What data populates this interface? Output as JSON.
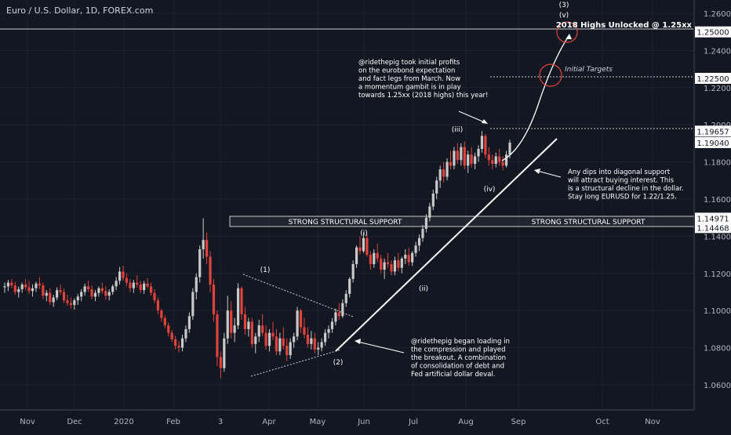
{
  "chart_data": {
    "type": "candlestick",
    "title": "Euro / U.S. Dollar, 1D, FOREX.com",
    "x_labels": [
      "Nov",
      "Dec",
      "2020",
      "Feb",
      "3",
      "Apr",
      "May",
      "Jun",
      "Jul",
      "Aug",
      "Sep",
      "Oct",
      "Nov"
    ],
    "y_ticks": [
      1.06,
      1.08,
      1.1,
      1.12,
      1.14,
      1.16,
      1.18,
      1.2,
      1.22,
      1.24,
      1.26
    ],
    "ylim": [
      1.0515,
      1.265
    ],
    "price_tags": [
      1.25,
      1.225,
      1.19657,
      1.1904,
      1.14971,
      1.14468
    ],
    "ohlc": [
      [
        1.1125,
        1.115,
        1.1095,
        1.113
      ],
      [
        1.113,
        1.1165,
        1.1105,
        1.115
      ],
      [
        1.115,
        1.117,
        1.112,
        1.1135
      ],
      [
        1.1135,
        1.1155,
        1.1085,
        1.11
      ],
      [
        1.11,
        1.113,
        1.107,
        1.1115
      ],
      [
        1.1115,
        1.115,
        1.1095,
        1.114
      ],
      [
        1.114,
        1.117,
        1.111,
        1.1125
      ],
      [
        1.1125,
        1.116,
        1.109,
        1.1105
      ],
      [
        1.1105,
        1.114,
        1.1075,
        1.112
      ],
      [
        1.112,
        1.1155,
        1.11,
        1.1145
      ],
      [
        1.1145,
        1.118,
        1.1115,
        1.1135
      ],
      [
        1.1135,
        1.115,
        1.106,
        1.108
      ],
      [
        1.108,
        1.111,
        1.105,
        1.1095
      ],
      [
        1.1095,
        1.112,
        1.103,
        1.1045
      ],
      [
        1.1045,
        1.1085,
        1.102,
        1.107
      ],
      [
        1.107,
        1.1125,
        1.1055,
        1.111
      ],
      [
        1.111,
        1.114,
        1.1085,
        1.11
      ],
      [
        1.11,
        1.112,
        1.104,
        1.1055
      ],
      [
        1.1055,
        1.1085,
        1.1025,
        1.104
      ],
      [
        1.104,
        1.107,
        1.101,
        1.103
      ],
      [
        1.103,
        1.1065,
        1.1005,
        1.1055
      ],
      [
        1.1055,
        1.109,
        1.103,
        1.1075
      ],
      [
        1.1075,
        1.1115,
        1.105,
        1.11
      ],
      [
        1.11,
        1.1145,
        1.108,
        1.113
      ],
      [
        1.113,
        1.116,
        1.11,
        1.1115
      ],
      [
        1.1115,
        1.1135,
        1.106,
        1.1075
      ],
      [
        1.1075,
        1.111,
        1.105,
        1.1095
      ],
      [
        1.1095,
        1.113,
        1.1075,
        1.112
      ],
      [
        1.112,
        1.115,
        1.109,
        1.1105
      ],
      [
        1.1105,
        1.113,
        1.106,
        1.108
      ],
      [
        1.108,
        1.1115,
        1.1055,
        1.11
      ],
      [
        1.11,
        1.114,
        1.1085,
        1.113
      ],
      [
        1.113,
        1.118,
        1.111,
        1.116
      ],
      [
        1.116,
        1.1235,
        1.114,
        1.121
      ],
      [
        1.121,
        1.124,
        1.116,
        1.1175
      ],
      [
        1.1175,
        1.12,
        1.113,
        1.115
      ],
      [
        1.115,
        1.117,
        1.11,
        1.112
      ],
      [
        1.112,
        1.1165,
        1.1095,
        1.115
      ],
      [
        1.115,
        1.119,
        1.1125,
        1.114
      ],
      [
        1.114,
        1.116,
        1.1095,
        1.111
      ],
      [
        1.111,
        1.116,
        1.109,
        1.1145
      ],
      [
        1.1145,
        1.1175,
        1.112,
        1.113
      ],
      [
        1.113,
        1.115,
        1.108,
        1.1095
      ],
      [
        1.1095,
        1.1115,
        1.104,
        1.1055
      ],
      [
        1.1055,
        1.107,
        1.098,
        1.1
      ],
      [
        1.1,
        1.101,
        1.094,
        1.096
      ],
      [
        1.096,
        1.0975,
        1.0905,
        1.092
      ],
      [
        1.092,
        1.0935,
        1.086,
        1.088
      ],
      [
        1.088,
        1.0895,
        1.083,
        1.0845
      ],
      [
        1.0845,
        1.0865,
        1.079,
        1.081
      ],
      [
        1.081,
        1.0835,
        1.0775,
        1.08
      ],
      [
        1.08,
        1.087,
        1.078,
        1.085
      ],
      [
        1.085,
        1.092,
        1.083,
        1.09
      ],
      [
        1.09,
        1.099,
        1.088,
        1.097
      ],
      [
        1.097,
        1.112,
        1.095,
        1.11
      ],
      [
        1.11,
        1.12,
        1.106,
        1.118
      ],
      [
        1.118,
        1.135,
        1.115,
        1.133
      ],
      [
        1.133,
        1.1497,
        1.128,
        1.138
      ],
      [
        1.138,
        1.142,
        1.125,
        1.129
      ],
      [
        1.129,
        1.132,
        1.11,
        1.114
      ],
      [
        1.114,
        1.117,
        1.094,
        1.098
      ],
      [
        1.098,
        1.1,
        1.07,
        1.075
      ],
      [
        1.075,
        1.078,
        1.0636,
        1.069
      ],
      [
        1.069,
        1.088,
        1.067,
        1.085
      ],
      [
        1.085,
        1.108,
        1.082,
        1.1
      ],
      [
        1.1,
        1.105,
        1.085,
        1.088
      ],
      [
        1.088,
        1.096,
        1.083,
        1.092
      ],
      [
        1.092,
        1.1147,
        1.09,
        1.112
      ],
      [
        1.112,
        1.113,
        1.095,
        1.098
      ],
      [
        1.098,
        1.102,
        1.087,
        1.09
      ],
      [
        1.09,
        1.096,
        1.086,
        1.094
      ],
      [
        1.094,
        1.096,
        1.08,
        1.082
      ],
      [
        1.082,
        1.088,
        1.077,
        1.086
      ],
      [
        1.086,
        1.095,
        1.083,
        1.092
      ],
      [
        1.092,
        1.098,
        1.086,
        1.088
      ],
      [
        1.088,
        1.092,
        1.079,
        1.081
      ],
      [
        1.081,
        1.09,
        1.078,
        1.088
      ],
      [
        1.088,
        1.094,
        1.084,
        1.086
      ],
      [
        1.086,
        1.09,
        1.076,
        1.078
      ],
      [
        1.078,
        1.088,
        1.076,
        1.085
      ],
      [
        1.085,
        1.091,
        1.079,
        1.081
      ],
      [
        1.081,
        1.085,
        1.0727,
        1.076
      ],
      [
        1.076,
        1.085,
        1.074,
        1.083
      ],
      [
        1.083,
        1.088,
        1.08,
        1.086
      ],
      [
        1.086,
        1.102,
        1.084,
        1.1
      ],
      [
        1.1,
        1.101,
        1.088,
        1.091
      ],
      [
        1.091,
        1.096,
        1.085,
        1.087
      ],
      [
        1.087,
        1.091,
        1.08,
        1.082
      ],
      [
        1.082,
        1.089,
        1.079,
        1.085
      ],
      [
        1.085,
        1.088,
        1.077,
        1.079
      ],
      [
        1.079,
        1.083,
        1.076,
        1.08
      ],
      [
        1.08,
        1.085,
        1.078,
        1.083
      ],
      [
        1.083,
        1.09,
        1.081,
        1.088
      ],
      [
        1.088,
        1.092,
        1.085,
        1.09
      ],
      [
        1.09,
        1.096,
        1.088,
        1.094
      ],
      [
        1.094,
        1.101,
        1.092,
        1.099
      ],
      [
        1.099,
        1.104,
        1.095,
        1.097
      ],
      [
        1.097,
        1.106,
        1.096,
        1.104
      ],
      [
        1.104,
        1.111,
        1.102,
        1.109
      ],
      [
        1.109,
        1.118,
        1.107,
        1.117
      ],
      [
        1.117,
        1.127,
        1.115,
        1.125
      ],
      [
        1.125,
        1.135,
        1.123,
        1.134
      ],
      [
        1.134,
        1.14,
        1.13,
        1.132
      ],
      [
        1.132,
        1.142,
        1.131,
        1.139
      ],
      [
        1.139,
        1.141,
        1.129,
        1.13
      ],
      [
        1.13,
        1.132,
        1.122,
        1.125
      ],
      [
        1.125,
        1.133,
        1.123,
        1.131
      ],
      [
        1.131,
        1.136,
        1.126,
        1.128
      ],
      [
        1.128,
        1.13,
        1.12,
        1.122
      ],
      [
        1.122,
        1.128,
        1.117,
        1.126
      ],
      [
        1.126,
        1.131,
        1.123,
        1.125
      ],
      [
        1.125,
        1.127,
        1.119,
        1.121
      ],
      [
        1.121,
        1.129,
        1.119,
        1.127
      ],
      [
        1.127,
        1.131,
        1.121,
        1.123
      ],
      [
        1.123,
        1.129,
        1.12,
        1.128
      ],
      [
        1.128,
        1.133,
        1.125,
        1.13
      ],
      [
        1.13,
        1.134,
        1.124,
        1.126
      ],
      [
        1.126,
        1.132,
        1.124,
        1.131
      ],
      [
        1.131,
        1.137,
        1.129,
        1.135
      ],
      [
        1.135,
        1.141,
        1.132,
        1.139
      ],
      [
        1.139,
        1.146,
        1.137,
        1.144
      ],
      [
        1.144,
        1.152,
        1.142,
        1.15
      ],
      [
        1.15,
        1.158,
        1.148,
        1.156
      ],
      [
        1.156,
        1.165,
        1.154,
        1.163
      ],
      [
        1.163,
        1.172,
        1.16,
        1.17
      ],
      [
        1.17,
        1.178,
        1.166,
        1.176
      ],
      [
        1.176,
        1.18,
        1.169,
        1.172
      ],
      [
        1.172,
        1.182,
        1.17,
        1.18
      ],
      [
        1.18,
        1.186,
        1.176,
        1.178
      ],
      [
        1.178,
        1.188,
        1.176,
        1.186
      ],
      [
        1.186,
        1.19,
        1.179,
        1.181
      ],
      [
        1.181,
        1.19,
        1.178,
        1.188
      ],
      [
        1.188,
        1.191,
        1.176,
        1.178
      ],
      [
        1.178,
        1.186,
        1.174,
        1.184
      ],
      [
        1.184,
        1.188,
        1.177,
        1.179
      ],
      [
        1.179,
        1.185,
        1.176,
        1.183
      ],
      [
        1.183,
        1.189,
        1.18,
        1.187
      ],
      [
        1.187,
        1.1966,
        1.185,
        1.194
      ],
      [
        1.194,
        1.195,
        1.182,
        1.184
      ],
      [
        1.184,
        1.188,
        1.178,
        1.181
      ],
      [
        1.181,
        1.184,
        1.176,
        1.179
      ],
      [
        1.179,
        1.185,
        1.177,
        1.183
      ],
      [
        1.183,
        1.187,
        1.178,
        1.18
      ],
      [
        1.18,
        1.183,
        1.1754,
        1.178
      ],
      [
        1.178,
        1.186,
        1.177,
        1.184
      ],
      [
        1.184,
        1.192,
        1.182,
        1.1904
      ]
    ]
  },
  "chart_colors": {
    "background": "#131722",
    "up": "#c9c9c9",
    "down": "#e0433b",
    "annotation_red": "#e0433b",
    "grid": "#1e222d",
    "text": "#d1d4dc"
  },
  "annotations": {
    "support_label_left": "STRONG STRUCTURAL SUPPORT",
    "support_label_right": "STRONG STRUCTURAL SUPPORT",
    "target_2018": "2018 Highs Unlocked @ 1.25xx",
    "initial_targets": "Initial Targets",
    "wave_3_top": "(3)",
    "wave_v": "(v)",
    "wave_i": "(i)",
    "wave_ii": "(ii)",
    "wave_iii": "(iii)",
    "wave_iv": "(iv)",
    "wave_1": "(1)",
    "wave_2": "(2)",
    "note_top": [
      "@ridethepig took initial profits",
      "on the eurobond expectation",
      "and fact legs from March. Now",
      "a momentum gambit is in play",
      "towards 1.25xx (2018 highs) this year!"
    ],
    "note_right": [
      "Any dips into diagonal support",
      "will attract buying interest. This",
      "is a structural decline in the dollar.",
      "Stay long EURUSD for 1.22/1.25."
    ],
    "note_bottom": [
      "@ridethepig began loading in",
      "the compression and played",
      "the breakout. A combination",
      "of consolidation of debt and",
      "Fed artificial dollar deval."
    ]
  }
}
